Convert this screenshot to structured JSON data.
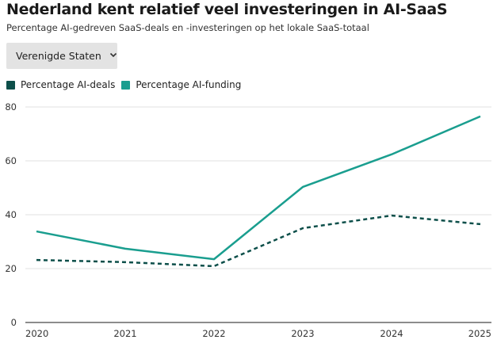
{
  "header": {
    "title": "Nederland kent relatief veel investeringen in AI-SaaS",
    "subtitle": "Percentage AI-gedreven SaaS-deals en -investeringen op het lokale SaaS-totaal"
  },
  "dropdown": {
    "selected": "Verenigde Staten",
    "icon": "chevron-down-icon"
  },
  "colors": {
    "deals": "#0d4f4a",
    "funding": "#1a9e8f",
    "grid": "#e2e2e2",
    "axis": "#666666"
  },
  "chart_data": {
    "type": "line",
    "title": "Nederland kent relatief veel investeringen in AI-SaaS",
    "subtitle": "Percentage AI-gedreven SaaS-deals en -investeringen op het lokale SaaS-totaal",
    "xlabel": "",
    "ylabel": "",
    "x": [
      "2020",
      "2021",
      "2022",
      "2023",
      "2024",
      "2025"
    ],
    "ylim": [
      0,
      80
    ],
    "yticks": [
      "0",
      "20",
      "40",
      "60",
      "80"
    ],
    "grid": true,
    "legend_position": "top-left",
    "series": [
      {
        "name": "Percentage AI-deals",
        "style": "dotted",
        "values": [
          23.2,
          22.4,
          20.9,
          35.0,
          39.7,
          36.5
        ]
      },
      {
        "name": "Percentage AI-funding",
        "style": "solid",
        "values": [
          33.8,
          27.4,
          23.5,
          50.3,
          62.4,
          76.5
        ]
      }
    ]
  }
}
